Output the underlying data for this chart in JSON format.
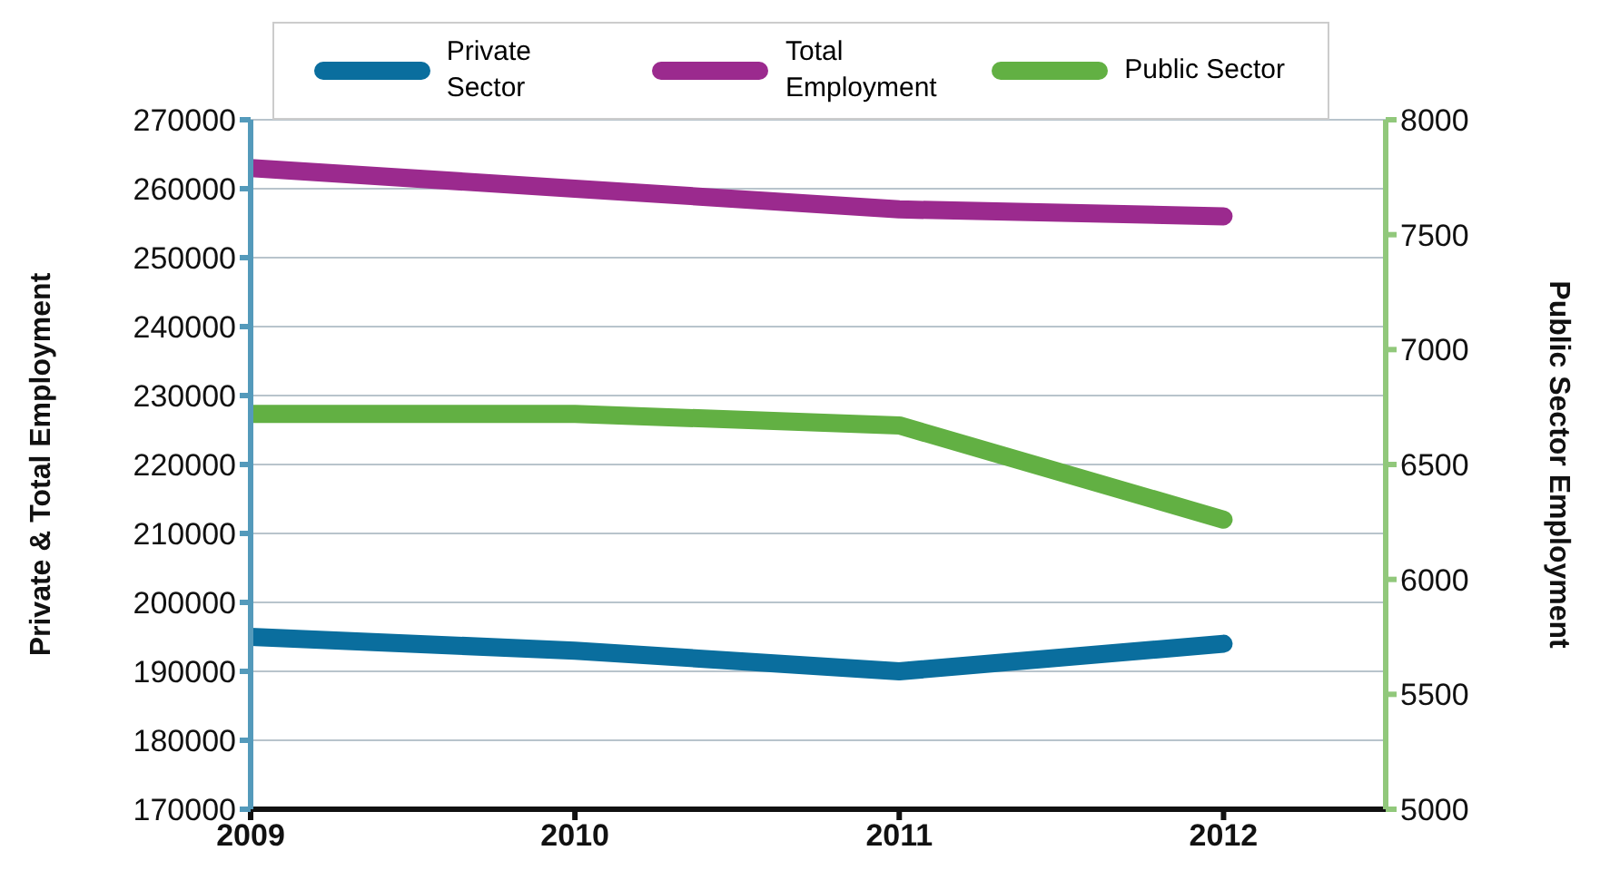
{
  "chart_data": {
    "type": "line",
    "xlabel": null,
    "ylabel": "Private & Total Employment",
    "y2label": "Public Sector Employment",
    "x": [
      2009,
      2010,
      2011,
      2012
    ],
    "xlim": [
      2009,
      2012.5
    ],
    "xticks": [
      2009,
      2010,
      2011,
      2012
    ],
    "ylim": [
      170000,
      270000
    ],
    "yticks": [
      170000,
      180000,
      190000,
      200000,
      210000,
      220000,
      230000,
      240000,
      250000,
      260000,
      270000
    ],
    "y2lim": [
      5000,
      8000
    ],
    "y2ticks": [
      5000,
      5500,
      6000,
      6500,
      7000,
      7500,
      8000
    ],
    "series": [
      {
        "name": "Private Sector",
        "color": "#0a6e9e",
        "values": [
          195000,
          193000,
          190000,
          194000
        ]
      },
      {
        "name": "Total Employment",
        "color": "#9b2a8e",
        "values": [
          263000,
          260000,
          257000,
          256000
        ]
      },
      {
        "name": "Public Sector",
        "color": "#62b043",
        "values": [
          6720,
          6720,
          6670,
          6260
        ],
        "axis": "y2"
      }
    ],
    "grid": "y",
    "legend": "top",
    "marker": "none",
    "line_style": "solid"
  }
}
